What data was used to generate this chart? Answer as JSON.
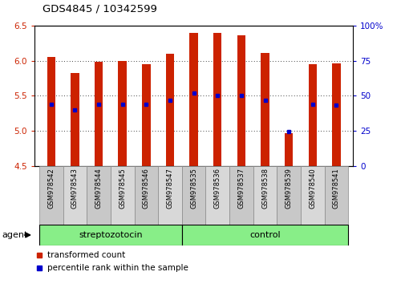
{
  "title": "GDS4845 / 10342599",
  "samples": [
    "GSM978542",
    "GSM978543",
    "GSM978544",
    "GSM978545",
    "GSM978546",
    "GSM978547",
    "GSM978535",
    "GSM978536",
    "GSM978537",
    "GSM978538",
    "GSM978539",
    "GSM978540",
    "GSM978541"
  ],
  "bar_values": [
    6.05,
    5.82,
    5.99,
    6.0,
    5.95,
    6.1,
    6.39,
    6.4,
    6.36,
    6.11,
    4.97,
    5.95,
    5.96
  ],
  "percentile_values": [
    5.38,
    5.3,
    5.38,
    5.38,
    5.38,
    5.44,
    5.54,
    5.5,
    5.5,
    5.44,
    4.99,
    5.38,
    5.37
  ],
  "ymin": 4.5,
  "ymax": 6.5,
  "yticks_left": [
    4.5,
    5.0,
    5.5,
    6.0,
    6.5
  ],
  "yticks_right": [
    0,
    25,
    50,
    75,
    100
  ],
  "bar_color": "#cc2200",
  "dot_color": "#0000cc",
  "streptozotocin_indices": [
    0,
    1,
    2,
    3,
    4,
    5
  ],
  "control_indices": [
    6,
    7,
    8,
    9,
    10,
    11,
    12
  ],
  "group_labels": [
    "streptozotocin",
    "control"
  ],
  "group_color": "#88ee88",
  "group_border_color": "#000000",
  "sample_bg_even": "#c8c8c8",
  "sample_bg_odd": "#d8d8d8",
  "sample_border_color": "#888888",
  "tick_color_left": "#cc2200",
  "tick_color_right": "#0000cc",
  "legend": [
    {
      "label": "transformed count",
      "color": "#cc2200",
      "marker": "s"
    },
    {
      "label": "percentile rank within the sample",
      "color": "#0000cc",
      "marker": "s"
    }
  ]
}
